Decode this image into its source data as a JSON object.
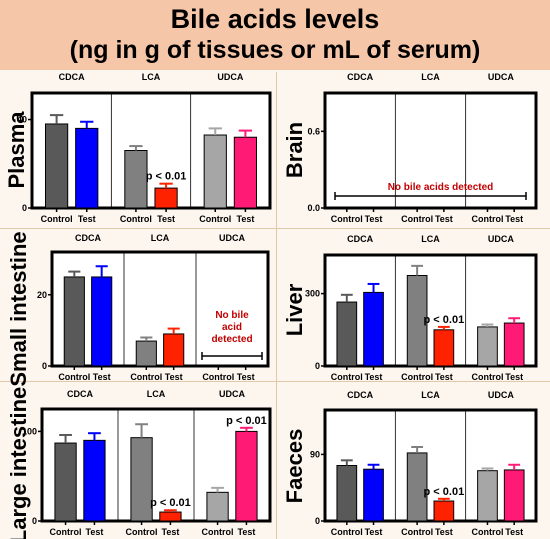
{
  "header": {
    "line1": "Bile acids levels",
    "line2": "(ng in g of tissues or mL of serum)",
    "background": "#f6c6a8"
  },
  "colors": {
    "control_cdca": "#595959",
    "test_cdca": "#0000ff",
    "control_lca": "#808080",
    "test_lca": "#ff2200",
    "control_udca": "#a6a6a6",
    "test_udca": "#ff1a75",
    "p_label": "#000000",
    "no_detect_label": "#c00000"
  },
  "chart_data": [
    {
      "type": "bar",
      "panel": "plasma",
      "ylabel": "Plasma",
      "groups": [
        "CDCA",
        "LCA",
        "UDCA"
      ],
      "x_labels": [
        "Control",
        "Test"
      ],
      "yticks": [
        0,
        40
      ],
      "ylim": [
        0,
        52
      ],
      "values": [
        [
          38,
          36
        ],
        [
          26,
          9
        ],
        [
          33,
          32
        ]
      ],
      "errors": [
        [
          4,
          3
        ],
        [
          2,
          2
        ],
        [
          3,
          3
        ]
      ],
      "annotations": [
        {
          "group": 1,
          "bar": 1,
          "text": "p < 0.01"
        }
      ]
    },
    {
      "type": "bar",
      "panel": "brain",
      "ylabel": "Brain",
      "groups": [
        "CDCA",
        "LCA",
        "UDCA"
      ],
      "x_labels": [
        "Control",
        "Test"
      ],
      "yticks": [
        0.0,
        0.6
      ],
      "ylim": [
        0,
        0.9
      ],
      "values": [
        [
          0,
          0
        ],
        [
          0,
          0
        ],
        [
          0,
          0
        ]
      ],
      "errors": [
        [
          0,
          0
        ],
        [
          0,
          0
        ],
        [
          0,
          0
        ]
      ],
      "note": "No bile acids detected"
    },
    {
      "type": "bar",
      "panel": "small-intestine",
      "ylabel": "Small intestine",
      "groups": [
        "CDCA",
        "LCA",
        "UDCA"
      ],
      "x_labels": [
        "Control",
        "Test"
      ],
      "yticks": [
        0,
        20
      ],
      "ylim": [
        0,
        32
      ],
      "values": [
        [
          25,
          25
        ],
        [
          7,
          9
        ],
        [
          0,
          0
        ]
      ],
      "errors": [
        [
          1.5,
          3
        ],
        [
          1,
          1.5
        ],
        [
          0,
          0
        ]
      ],
      "group_note": {
        "group": 2,
        "lines": [
          "No bile",
          "acid",
          "detected"
        ]
      }
    },
    {
      "type": "bar",
      "panel": "liver",
      "ylabel": "Liver",
      "groups": [
        "CDCA",
        "LCA",
        "UDCA"
      ],
      "x_labels": [
        "Control",
        "Test"
      ],
      "yticks": [
        0,
        300
      ],
      "ylim": [
        0,
        460
      ],
      "values": [
        [
          265,
          305
        ],
        [
          375,
          150
        ],
        [
          162,
          178
        ]
      ],
      "errors": [
        [
          30,
          35
        ],
        [
          40,
          12
        ],
        [
          10,
          20
        ]
      ],
      "annotations": [
        {
          "group": 1,
          "bar": 1,
          "text": "p < 0.01"
        }
      ]
    },
    {
      "type": "bar",
      "panel": "large-intestine",
      "ylabel": "Large intestine",
      "groups": [
        "CDCA",
        "LCA",
        "UDCA"
      ],
      "x_labels": [
        "Control",
        "Test"
      ],
      "yticks": [
        0,
        100
      ],
      "ylim": [
        0,
        125
      ],
      "values": [
        [
          87,
          90
        ],
        [
          93,
          10
        ],
        [
          32,
          100
        ]
      ],
      "errors": [
        [
          9,
          8
        ],
        [
          15,
          2
        ],
        [
          5,
          4
        ]
      ],
      "annotations": [
        {
          "group": 1,
          "bar": 1,
          "text": "p < 0.01"
        },
        {
          "group": 2,
          "bar": 1,
          "text": "p < 0.01"
        }
      ]
    },
    {
      "type": "bar",
      "panel": "faeces",
      "ylabel": "Faeces",
      "groups": [
        "CDCA",
        "LCA",
        "UDCA"
      ],
      "x_labels": [
        "Control",
        "Test"
      ],
      "yticks": [
        0,
        90
      ],
      "ylim": [
        0,
        150
      ],
      "values": [
        [
          75,
          70
        ],
        [
          92,
          27
        ],
        [
          68,
          69
        ]
      ],
      "errors": [
        [
          7,
          6
        ],
        [
          8,
          3
        ],
        [
          3,
          7
        ]
      ],
      "annotations": [
        {
          "group": 1,
          "bar": 1,
          "text": "p < 0.01"
        }
      ]
    }
  ]
}
